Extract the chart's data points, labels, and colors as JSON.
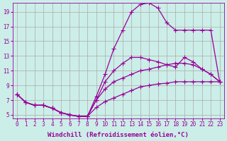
{
  "background_color": "#cceee8",
  "grid_color": "#aaaaaa",
  "line_color": "#990099",
  "marker": "+",
  "markersize": 4,
  "linewidth": 0.9,
  "xlabel": "Windchill (Refroidissement éolien,°C)",
  "xlabel_fontsize": 6.5,
  "tick_fontsize": 5.5,
  "xlim": [
    -0.5,
    23.5
  ],
  "ylim": [
    4.5,
    20.2
  ],
  "yticks": [
    5,
    7,
    9,
    11,
    13,
    15,
    17,
    19
  ],
  "xticks": [
    0,
    1,
    2,
    3,
    4,
    5,
    6,
    7,
    8,
    9,
    10,
    11,
    12,
    13,
    14,
    15,
    16,
    17,
    18,
    19,
    20,
    21,
    22,
    23
  ],
  "series": [
    [
      [
        0,
        7.8
      ],
      [
        1,
        6.7
      ],
      [
        2,
        6.3
      ],
      [
        3,
        6.3
      ],
      [
        4,
        5.9
      ],
      [
        5,
        5.3
      ],
      [
        6,
        5.0
      ],
      [
        7,
        4.8
      ],
      [
        8,
        4.8
      ],
      [
        9,
        7.5
      ],
      [
        10,
        10.5
      ],
      [
        11,
        14.0
      ],
      [
        12,
        16.5
      ],
      [
        13,
        19.0
      ],
      [
        14,
        20.0
      ],
      [
        15,
        20.2
      ],
      [
        16,
        19.5
      ],
      [
        17,
        17.5
      ],
      [
        18,
        16.5
      ],
      [
        19,
        16.5
      ],
      [
        20,
        16.5
      ],
      [
        21,
        16.5
      ],
      [
        22,
        16.5
      ],
      [
        23,
        9.5
      ]
    ],
    [
      [
        0,
        7.8
      ],
      [
        1,
        6.7
      ],
      [
        2,
        6.3
      ],
      [
        3,
        6.3
      ],
      [
        4,
        5.9
      ],
      [
        5,
        5.3
      ],
      [
        6,
        5.0
      ],
      [
        7,
        4.8
      ],
      [
        8,
        4.8
      ],
      [
        9,
        7.0
      ],
      [
        10,
        9.5
      ],
      [
        11,
        11.0
      ],
      [
        12,
        12.0
      ],
      [
        13,
        12.8
      ],
      [
        14,
        12.8
      ],
      [
        15,
        12.5
      ],
      [
        16,
        12.2
      ],
      [
        17,
        11.8
      ],
      [
        18,
        11.5
      ],
      [
        19,
        12.8
      ],
      [
        20,
        12.2
      ],
      [
        21,
        11.2
      ],
      [
        22,
        10.5
      ],
      [
        23,
        9.5
      ]
    ],
    [
      [
        0,
        7.8
      ],
      [
        1,
        6.7
      ],
      [
        2,
        6.3
      ],
      [
        3,
        6.3
      ],
      [
        4,
        5.9
      ],
      [
        5,
        5.3
      ],
      [
        6,
        5.0
      ],
      [
        7,
        4.8
      ],
      [
        8,
        4.8
      ],
      [
        9,
        7.0
      ],
      [
        10,
        8.5
      ],
      [
        11,
        9.5
      ],
      [
        12,
        10.0
      ],
      [
        13,
        10.5
      ],
      [
        14,
        11.0
      ],
      [
        15,
        11.2
      ],
      [
        16,
        11.5
      ],
      [
        17,
        11.8
      ],
      [
        18,
        12.0
      ],
      [
        19,
        12.0
      ],
      [
        20,
        11.8
      ],
      [
        21,
        11.2
      ],
      [
        22,
        10.5
      ],
      [
        23,
        9.5
      ]
    ],
    [
      [
        0,
        7.8
      ],
      [
        1,
        6.7
      ],
      [
        2,
        6.3
      ],
      [
        3,
        6.3
      ],
      [
        4,
        5.9
      ],
      [
        5,
        5.3
      ],
      [
        6,
        5.0
      ],
      [
        7,
        4.8
      ],
      [
        8,
        4.8
      ],
      [
        9,
        6.0
      ],
      [
        10,
        6.8
      ],
      [
        11,
        7.3
      ],
      [
        12,
        7.8
      ],
      [
        13,
        8.3
      ],
      [
        14,
        8.8
      ],
      [
        15,
        9.0
      ],
      [
        16,
        9.2
      ],
      [
        17,
        9.3
      ],
      [
        18,
        9.5
      ],
      [
        19,
        9.5
      ],
      [
        20,
        9.5
      ],
      [
        21,
        9.5
      ],
      [
        22,
        9.5
      ],
      [
        23,
        9.5
      ]
    ]
  ]
}
